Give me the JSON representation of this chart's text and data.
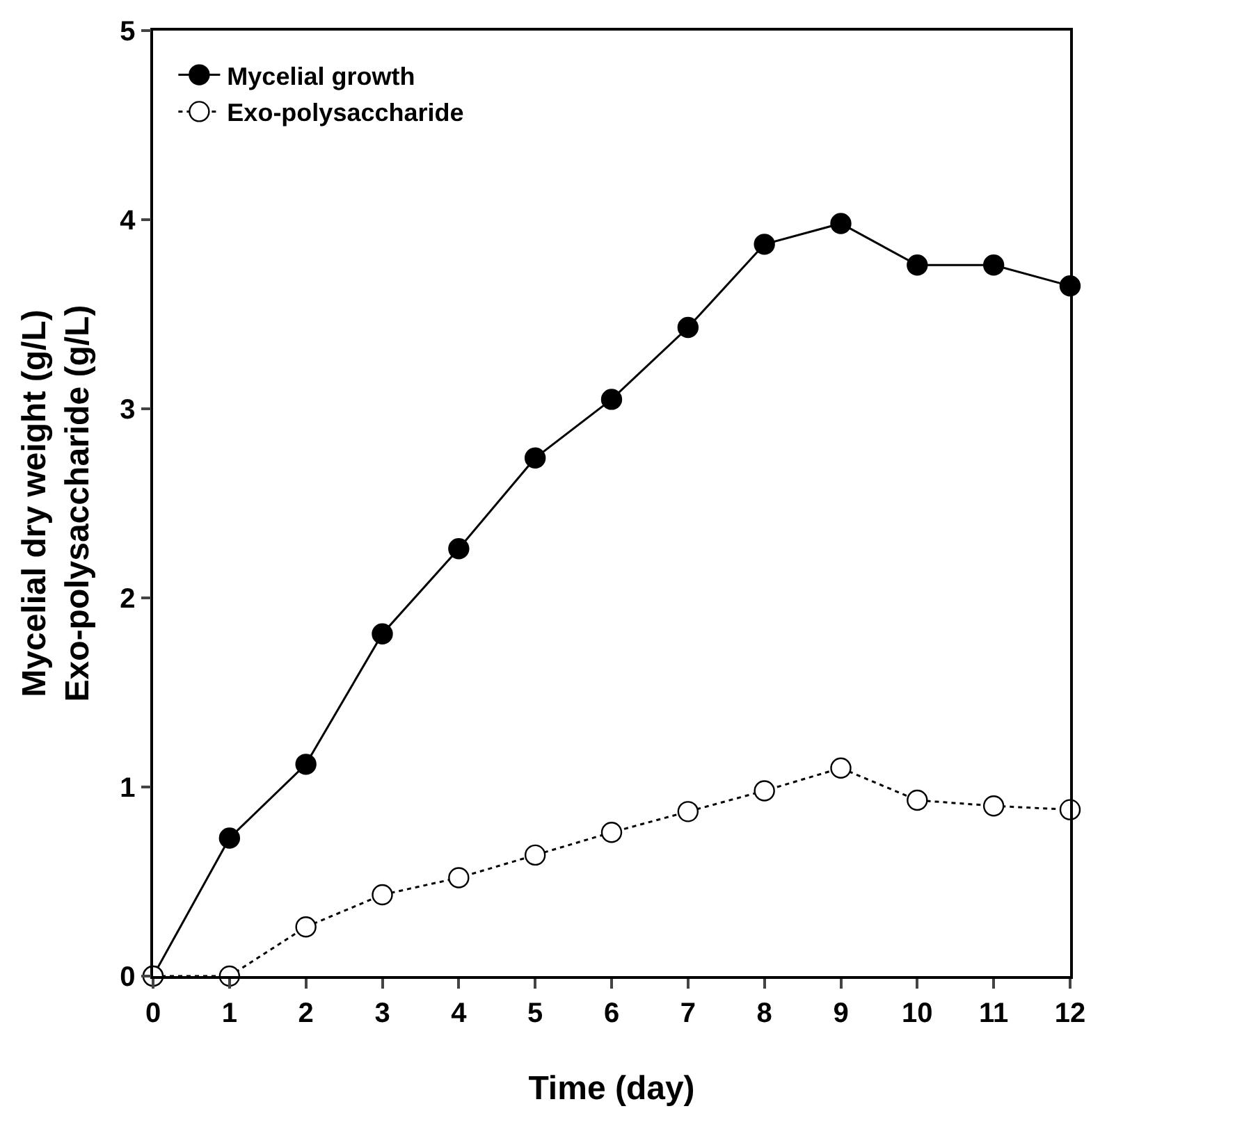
{
  "chart_data": {
    "type": "line",
    "xlabel": "Time (day)",
    "ylabel": "Mycelial dry weight (g/L)\nExo-polysaccharide (g/L)",
    "x": [
      0,
      1,
      2,
      3,
      4,
      5,
      6,
      7,
      8,
      9,
      10,
      11,
      12
    ],
    "series": [
      {
        "name": "Mycelial growth",
        "color": "#000000",
        "line_style": "solid",
        "values": [
          0,
          0.73,
          1.12,
          1.81,
          2.26,
          2.74,
          3.05,
          3.43,
          3.87,
          3.98,
          3.76,
          3.76,
          3.65
        ]
      },
      {
        "name": "Exo-polysaccharide",
        "color": "#000000",
        "line_style": "dotted",
        "values": [
          0,
          0,
          0.26,
          0.43,
          0.52,
          0.64,
          0.76,
          0.87,
          0.98,
          1.1,
          0.93,
          0.9,
          0.88
        ]
      }
    ],
    "xlim": [
      0,
      12
    ],
    "xticks": [
      0,
      1,
      2,
      3,
      4,
      5,
      6,
      7,
      8,
      9,
      10,
      11,
      12
    ],
    "ylim": [
      0,
      5
    ],
    "yticks": [
      0,
      1,
      2,
      3,
      4,
      5
    ],
    "legend": "top left",
    "marker": "circle"
  }
}
